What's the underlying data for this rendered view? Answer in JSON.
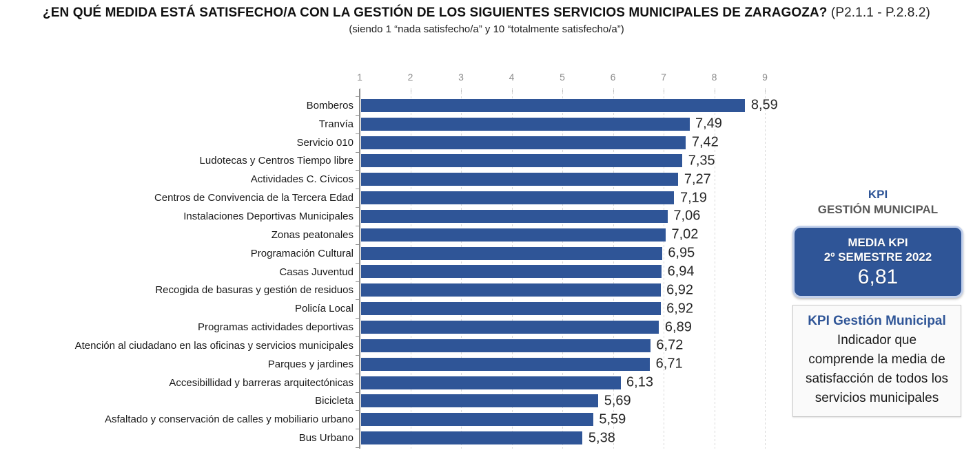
{
  "theme": {
    "accent_color": "#2F5597",
    "bar_color": "#2F5597",
    "gray_text_color": "#595959"
  },
  "header": {
    "title_main": "¿EN QUÉ MEDIDA ESTÁ SATISFECHO/A CON LA GESTIÓN DE LOS SIGUIENTES SERVICIOS MUNICIPALES DE ZARAGOZA?",
    "title_code": "(P2.1.1 - P.2.8.2)",
    "subtitle": "(siendo 1 “nada satisfecho/a” y 10 “totalmente satisfecho/a”)"
  },
  "chart_data": {
    "type": "bar",
    "orientation": "horizontal",
    "title": "",
    "xlabel": "",
    "ylabel": "",
    "axis": {
      "min": 1,
      "max": 10,
      "ticks": [
        1,
        2,
        3,
        4,
        5,
        6,
        7,
        8,
        9
      ]
    },
    "grid": "vertical-dashed",
    "legend": "none",
    "bar_color": "#2F5597",
    "categories": [
      "Bomberos",
      "Tranvía",
      "Servicio 010",
      "Ludotecas y Centros Tiempo libre",
      "Actividades C. Cívicos",
      "Centros de Convivencia de la Tercera Edad",
      "Instalaciones Deportivas Municipales",
      "Zonas peatonales",
      "Programación Cultural",
      "Casas Juventud",
      "Recogida de basuras y gestión de residuos",
      "Policía Local",
      "Programas actividades deportivas",
      "Atención al ciudadano en las oficinas y servicios municipales",
      "Parques y jardines",
      "Accesibillidad y barreras arquitectónicas",
      "Bicicleta",
      "Asfaltado y conservación de calles y mobiliario urbano",
      "Bus Urbano"
    ],
    "values": [
      8.59,
      7.49,
      7.42,
      7.35,
      7.27,
      7.19,
      7.06,
      7.02,
      6.95,
      6.94,
      6.92,
      6.92,
      6.89,
      6.72,
      6.71,
      6.13,
      5.69,
      5.59,
      5.38
    ],
    "value_labels": [
      "8,59",
      "7,49",
      "7,42",
      "7,35",
      "7,27",
      "7,19",
      "7,06",
      "7,02",
      "6,95",
      "6,94",
      "6,92",
      "6,92",
      "6,89",
      "6,72",
      "6,71",
      "6,13",
      "5,69",
      "5,59",
      "5,38"
    ]
  },
  "kpi_panel": {
    "header_line1": "KPI",
    "header_line2": "GESTIÓN MUNICIPAL",
    "media_box": {
      "line1": "MEDIA KPI",
      "line2": "2º SEMESTRE 2022",
      "value": "6,81",
      "bg_color": "#2F5597"
    },
    "info_box": {
      "title": "KPI Gestión Municipal",
      "description_lines": [
        "Indicador que",
        "comprende la media de",
        "satisfacción de todos los",
        "servicios municipales"
      ]
    }
  }
}
